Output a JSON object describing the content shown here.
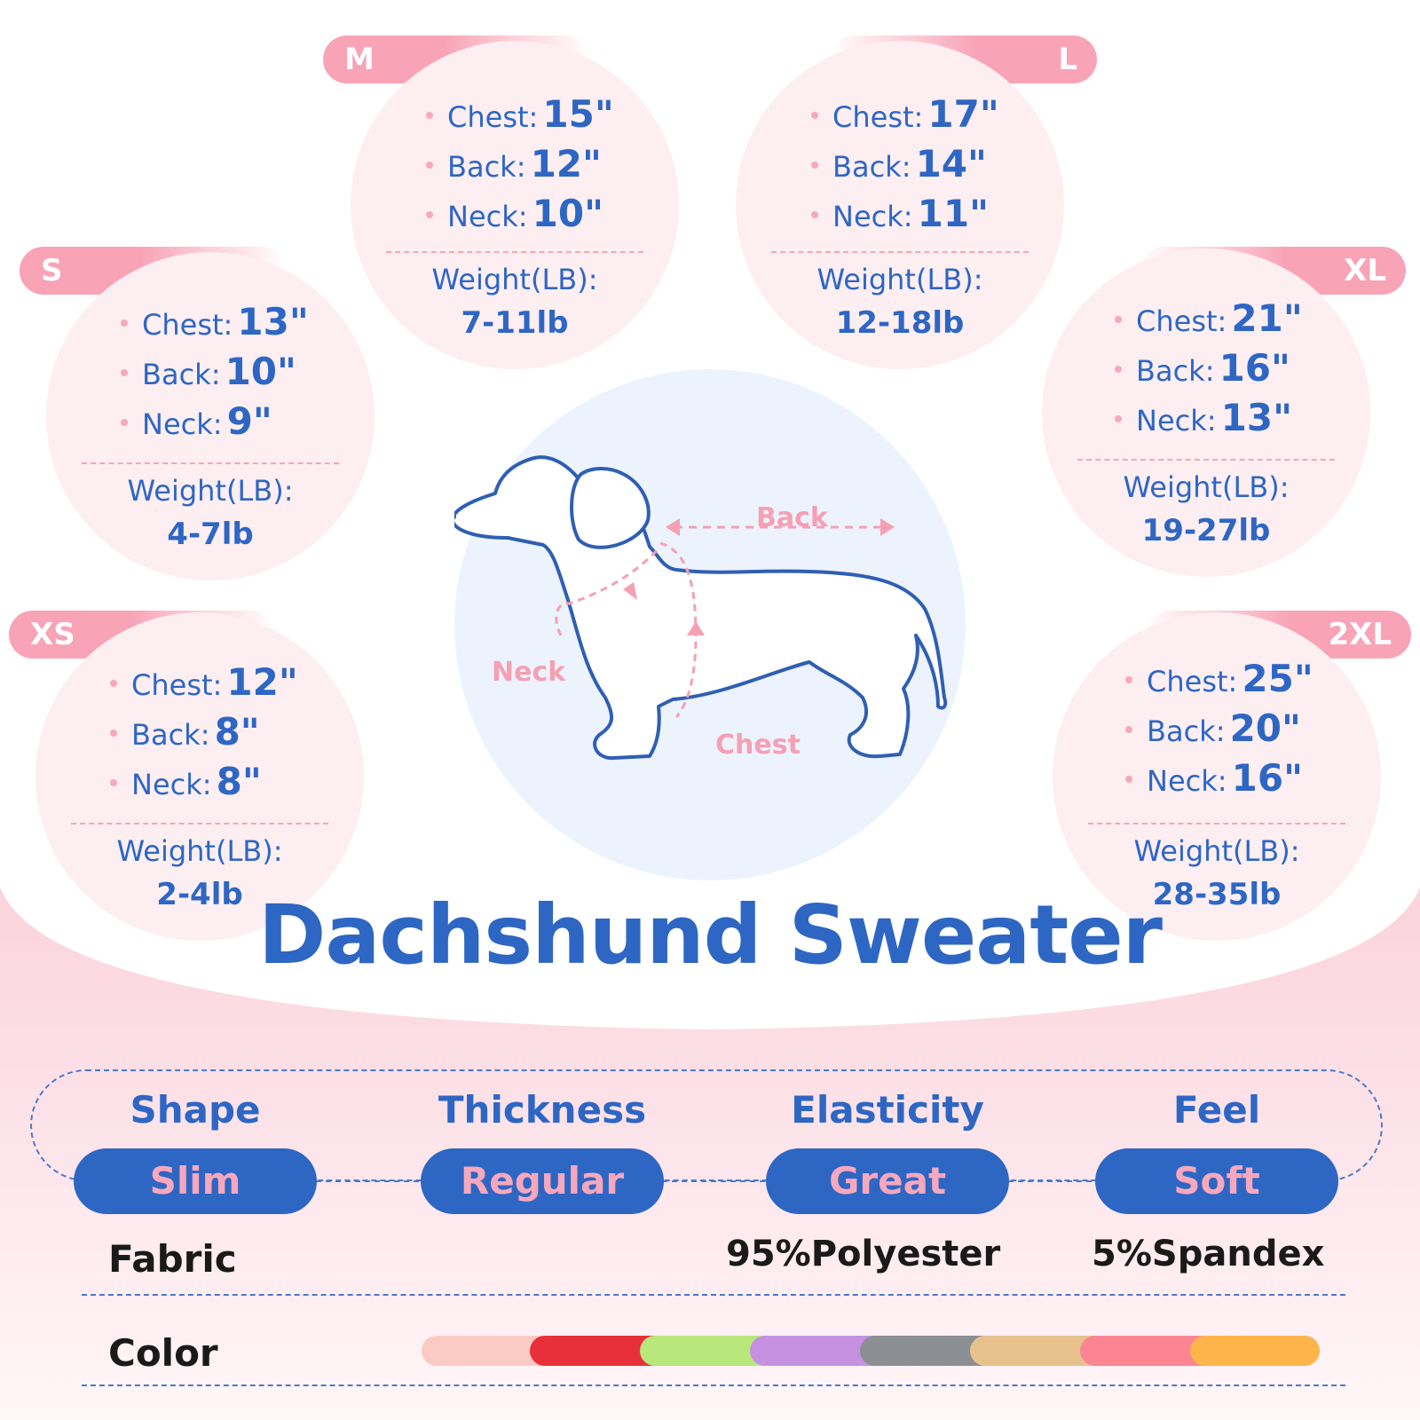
{
  "title": "Dachshund Sweater",
  "sizes": [
    {
      "size": "M",
      "chest_label": "Chest:",
      "chest": "15\"",
      "back_label": "Back:",
      "back": "12\"",
      "neck_label": "Neck:",
      "neck": "10\"",
      "weight_label": "Weight(LB):",
      "weight": "7-11lb"
    },
    {
      "size": "L",
      "chest_label": "Chest:",
      "chest": "17\"",
      "back_label": "Back:",
      "back": "14\"",
      "neck_label": "Neck:",
      "neck": "11\"",
      "weight_label": "Weight(LB):",
      "weight": "12-18lb"
    },
    {
      "size": "S",
      "chest_label": "Chest:",
      "chest": "13\"",
      "back_label": "Back:",
      "back": "10\"",
      "neck_label": "Neck:",
      "neck": "9\"",
      "weight_label": "Weight(LB):",
      "weight": "4-7lb"
    },
    {
      "size": "XL",
      "chest_label": "Chest:",
      "chest": "21\"",
      "back_label": "Back:",
      "back": "16\"",
      "neck_label": "Neck:",
      "neck": "13\"",
      "weight_label": "Weight(LB):",
      "weight": "19-27lb"
    },
    {
      "size": "XS",
      "chest_label": "Chest:",
      "chest": "12\"",
      "back_label": "Back:",
      "back": "8\"",
      "neck_label": "Neck:",
      "neck": "8\"",
      "weight_label": "Weight(LB):",
      "weight": "2-4lb"
    },
    {
      "size": "2XL",
      "chest_label": "Chest:",
      "chest": "25\"",
      "back_label": "Back:",
      "back": "20\"",
      "neck_label": "Neck:",
      "neck": "16\"",
      "weight_label": "Weight(LB):",
      "weight": "28-35lb"
    }
  ],
  "diagram": {
    "back": "Back",
    "neck": "Neck",
    "chest": "Chest"
  },
  "properties": [
    {
      "name": "Shape",
      "value": "Slim"
    },
    {
      "name": "Thickness",
      "value": "Regular"
    },
    {
      "name": "Elasticity",
      "value": "Great"
    },
    {
      "name": "Feel",
      "value": "Soft"
    }
  ],
  "fabric": {
    "label": "Fabric",
    "values": [
      "95%Polyester",
      "5%Spandex"
    ]
  },
  "color": {
    "label": "Color",
    "swatches": [
      "#fccac5",
      "#e8303a",
      "#b8e77b",
      "#c591e0",
      "#8b8e93",
      "#e6c18c",
      "#fb8592",
      "#fdb54b"
    ]
  },
  "palette": {
    "primary_blue": "#2e66c4",
    "accent_pink": "#f7a8bc",
    "circle_pink": "#fdeef1",
    "center_blue": "#edf3fd"
  }
}
